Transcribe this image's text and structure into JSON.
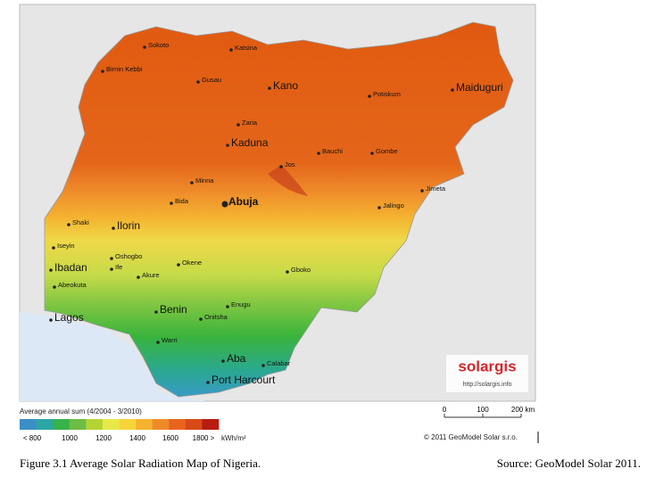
{
  "map": {
    "cities": [
      "Sokoto",
      "Katsina",
      "Birnin Kebbi",
      "Gusau",
      "Kano",
      "Potiskum",
      "Maiduguri",
      "Zaria",
      "Kaduna",
      "Bauchi",
      "Gombe",
      "Jos",
      "Minna",
      "Abuja",
      "Bida",
      "Jimeta",
      "Jalingo",
      "Shaki",
      "Ilorin",
      "Iseyin",
      "Oshogbo",
      "Ife",
      "Okene",
      "Ibadan",
      "Akure",
      "Gboko",
      "Abeokuta",
      "Lagos",
      "Benin",
      "Enugu",
      "Onitsha",
      "Warri",
      "Aba",
      "Calabar",
      "Port Harcourt"
    ]
  },
  "logo": {
    "brand": "solargis",
    "url": "http://solargis.info"
  },
  "legend": {
    "title": "Average annual sum (4/2004 - 3/2010)",
    "colors": [
      "#3a8fc6",
      "#2ca6a4",
      "#36b34a",
      "#6cbd45",
      "#b5d334",
      "#e8e84a",
      "#f7d43a",
      "#f5b130",
      "#ef8a2a",
      "#e8641e",
      "#d74a17",
      "#b81d12"
    ],
    "labels": [
      "< 800",
      "1000",
      "1200",
      "1400",
      "1600",
      "1800 >"
    ],
    "unit": "kWh/m²"
  },
  "scale_bar": {
    "labels": [
      "0",
      "100",
      "200 km"
    ]
  },
  "copyright": "© 2011 GeoModel Solar s.r.o.",
  "caption": {
    "figure": "Figure 3.1 Average Solar Radiation Map of Nigeria.",
    "source": "Source:  GeoModel Solar 2011."
  }
}
